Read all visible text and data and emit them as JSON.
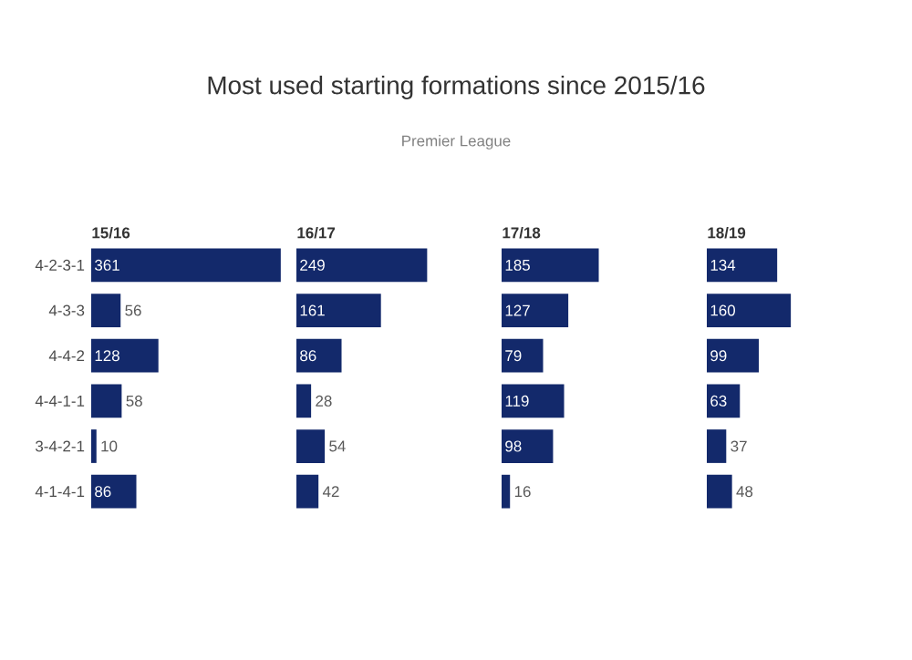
{
  "chart_data": [
    {
      "type": "other",
      "title": "Most used starting formations since 2015/16",
      "subtitle": "Premier League"
    },
    {
      "type": "bar",
      "orientation": "horizontal",
      "title": "15/16",
      "categories": [
        "4-2-3-1",
        "4-3-3",
        "4-4-2",
        "4-4-1-1",
        "3-4-2-1",
        "4-1-4-1"
      ],
      "values": [
        361,
        56,
        128,
        58,
        10,
        86
      ],
      "color": "#13296b",
      "data_labels": true,
      "tick_labels": "y"
    },
    {
      "type": "bar",
      "orientation": "horizontal",
      "title": "16/17",
      "categories": [
        null,
        null,
        null,
        null,
        null,
        null
      ],
      "values": [
        249,
        161,
        86,
        28,
        54,
        42
      ],
      "color": "#13296b",
      "data_labels": true,
      "tick_labels": false
    },
    {
      "type": "bar",
      "orientation": "horizontal",
      "title": "17/18",
      "categories": [
        null,
        null,
        null,
        null,
        null,
        null
      ],
      "values": [
        185,
        127,
        79,
        119,
        98,
        16
      ],
      "color": "#13296b",
      "data_labels": true,
      "tick_labels": false
    },
    {
      "type": "bar",
      "orientation": "horizontal",
      "title": "18/19",
      "categories": [
        null,
        null,
        null,
        null,
        null,
        null
      ],
      "values": [
        134,
        160,
        99,
        63,
        37,
        48
      ],
      "color": "#13296b",
      "data_labels": true,
      "tick_labels": false
    }
  ]
}
